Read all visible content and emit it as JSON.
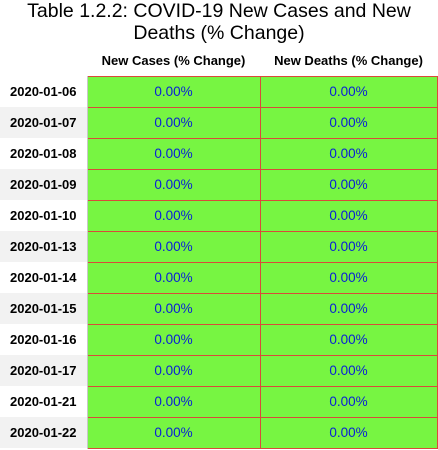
{
  "title": "Table 1.2.2: COVID-19 New Cases and New Deaths (% Change)",
  "colors": {
    "cell_fill": "#77f542",
    "cell_text": "#0a20d6",
    "cell_border": "#d94a3a"
  },
  "chart_data": {
    "type": "table",
    "title": "Table 1.2.2: COVID-19 New Cases and New Deaths (% Change)",
    "columns": [
      "New Cases (% Change)",
      "New Deaths (% Change)"
    ],
    "rows": [
      {
        "date": "2020-01-06",
        "new_cases": "0.00%",
        "new_deaths": "0.00%"
      },
      {
        "date": "2020-01-07",
        "new_cases": "0.00%",
        "new_deaths": "0.00%"
      },
      {
        "date": "2020-01-08",
        "new_cases": "0.00%",
        "new_deaths": "0.00%"
      },
      {
        "date": "2020-01-09",
        "new_cases": "0.00%",
        "new_deaths": "0.00%"
      },
      {
        "date": "2020-01-10",
        "new_cases": "0.00%",
        "new_deaths": "0.00%"
      },
      {
        "date": "2020-01-13",
        "new_cases": "0.00%",
        "new_deaths": "0.00%"
      },
      {
        "date": "2020-01-14",
        "new_cases": "0.00%",
        "new_deaths": "0.00%"
      },
      {
        "date": "2020-01-15",
        "new_cases": "0.00%",
        "new_deaths": "0.00%"
      },
      {
        "date": "2020-01-16",
        "new_cases": "0.00%",
        "new_deaths": "0.00%"
      },
      {
        "date": "2020-01-17",
        "new_cases": "0.00%",
        "new_deaths": "0.00%"
      },
      {
        "date": "2020-01-21",
        "new_cases": "0.00%",
        "new_deaths": "0.00%"
      },
      {
        "date": "2020-01-22",
        "new_cases": "0.00%",
        "new_deaths": "0.00%"
      }
    ]
  }
}
